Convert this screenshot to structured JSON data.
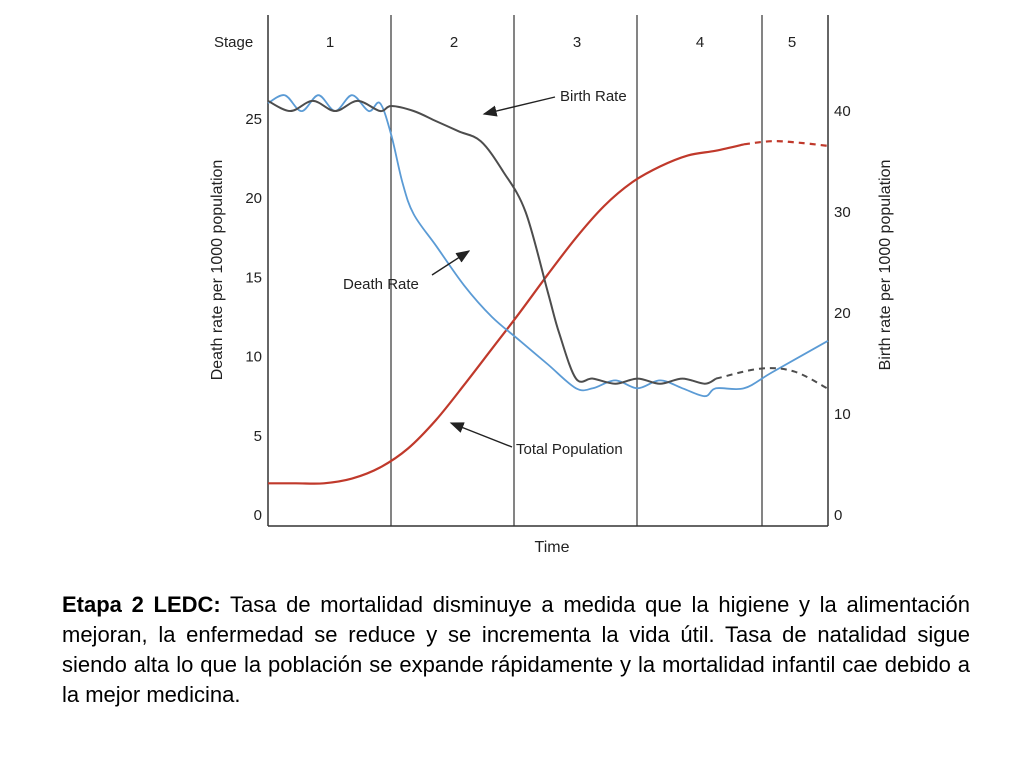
{
  "chart_data": {
    "type": "line",
    "stage_header": "Stage",
    "stages": [
      "1",
      "2",
      "3",
      "4",
      "5"
    ],
    "xlabel": "Time",
    "ylabel_left": "Death rate per 1000 population",
    "ylabel_right": "Birth rate per 1000 population",
    "left_ticks": [
      "0",
      "5",
      "10",
      "15",
      "20",
      "25"
    ],
    "right_ticks": [
      "0",
      "10",
      "20",
      "30",
      "40"
    ],
    "ylim_left": [
      0,
      32
    ],
    "ylim_right": [
      0,
      41
    ],
    "grid": false,
    "series": [
      {
        "name": "Birth Rate",
        "axis": "right",
        "color": "#4d4d4d",
        "x": [
          0,
          0.04,
          0.08,
          0.12,
          0.16,
          0.2,
          0.22,
          0.26,
          0.3,
          0.34,
          0.38,
          0.42,
          0.46,
          0.5,
          0.52,
          0.55,
          0.58,
          0.62,
          0.66,
          0.7,
          0.74,
          0.78,
          0.8
        ],
        "values": [
          41,
          40,
          41,
          40,
          41,
          40,
          40.5,
          40,
          39,
          38,
          37,
          34,
          30,
          22,
          18,
          13.5,
          13.5,
          13,
          13.5,
          13,
          13.5,
          13,
          13.5
        ]
      },
      {
        "name": "Death Rate",
        "axis": "left",
        "color": "#5b9bd5",
        "x": [
          0,
          0.03,
          0.06,
          0.09,
          0.12,
          0.15,
          0.18,
          0.2,
          0.22,
          0.24,
          0.26,
          0.3,
          0.35,
          0.4,
          0.45,
          0.5,
          0.55,
          0.58,
          0.62,
          0.66,
          0.7,
          0.74,
          0.78,
          0.8,
          0.85,
          0.9,
          1.0
        ],
        "values": [
          26,
          26.5,
          25.5,
          26.5,
          25.5,
          26.5,
          25.5,
          26,
          24,
          21,
          19,
          17,
          14.5,
          12.5,
          11,
          9.5,
          8,
          8,
          8.5,
          8,
          8.5,
          8,
          7.5,
          8,
          8,
          9,
          11
        ]
      },
      {
        "name": "Total Population",
        "axis": "left",
        "color": "#c0392b",
        "x": [
          0,
          0.05,
          0.1,
          0.15,
          0.2,
          0.25,
          0.3,
          0.35,
          0.4,
          0.45,
          0.5,
          0.55,
          0.6,
          0.65,
          0.7,
          0.75,
          0.8,
          0.85,
          0.9,
          0.95,
          1.0
        ],
        "values": [
          2,
          2,
          2,
          2.3,
          3,
          4.2,
          6,
          8.2,
          10.5,
          12.8,
          15.2,
          17.5,
          19.5,
          21,
          22,
          22.7,
          23,
          23.4,
          23.6,
          23.5,
          23.3
        ]
      }
    ],
    "annotations": [
      "Birth Rate",
      "Death Rate",
      "Total Population"
    ]
  },
  "caption": {
    "bold_lead": "Etapa 2 LEDC:",
    "text": " Tasa de mortalidad disminuye a medida que la higiene y la alimentación mejoran, la enfermedad se reduce y se incrementa la vida útil. Tasa de natalidad sigue siendo alta lo que la población se expande rápidamente y la mortalidad infantil cae debido a la mejor medicina."
  }
}
